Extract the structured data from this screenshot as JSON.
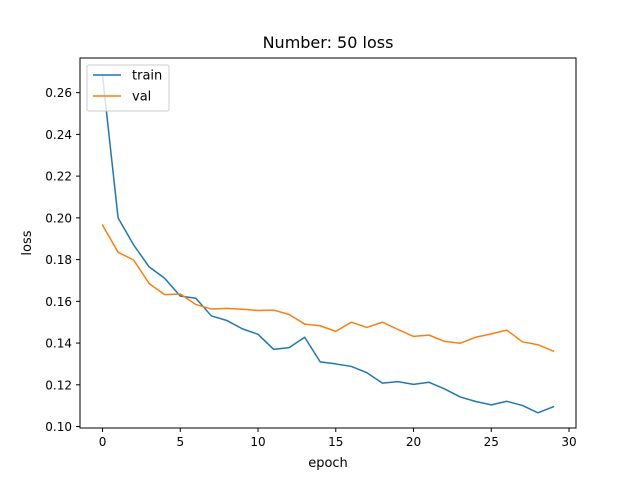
{
  "chart_data": {
    "type": "line",
    "title": "Number: 50 loss",
    "xlabel": "epoch",
    "ylabel": "loss",
    "xlim": [
      -1.45,
      30.45
    ],
    "ylim": [
      0.0993,
      0.2766
    ],
    "xticks": [
      0,
      5,
      10,
      15,
      20,
      25,
      30
    ],
    "xtick_labels": [
      "0",
      "5",
      "10",
      "15",
      "20",
      "25",
      "30"
    ],
    "yticks": [
      0.1,
      0.12,
      0.14,
      0.16,
      0.18,
      0.2,
      0.22,
      0.24,
      0.26
    ],
    "ytick_labels": [
      "0.10",
      "0.12",
      "0.14",
      "0.16",
      "0.18",
      "0.20",
      "0.22",
      "0.24",
      "0.26"
    ],
    "grid": false,
    "legend_position": "top-left",
    "x": [
      0,
      1,
      2,
      3,
      4,
      5,
      6,
      7,
      8,
      9,
      10,
      11,
      12,
      13,
      14,
      15,
      16,
      17,
      18,
      19,
      20,
      21,
      22,
      23,
      24,
      25,
      26,
      27,
      28,
      29
    ],
    "series": [
      {
        "name": "train",
        "color": "#1f77b4",
        "values": [
          0.268,
          0.2,
          0.187,
          0.1765,
          0.171,
          0.1625,
          0.1615,
          0.153,
          0.1508,
          0.1468,
          0.1442,
          0.137,
          0.1378,
          0.1428,
          0.131,
          0.13,
          0.1288,
          0.1258,
          0.1208,
          0.1215,
          0.1202,
          0.1212,
          0.118,
          0.1142,
          0.112,
          0.1104,
          0.1121,
          0.1101,
          0.1066,
          0.1095
        ]
      },
      {
        "name": "val",
        "color": "#ff7f0e",
        "values": [
          0.1965,
          0.1835,
          0.1798,
          0.1685,
          0.1632,
          0.1635,
          0.1585,
          0.1563,
          0.1566,
          0.1562,
          0.1556,
          0.1558,
          0.1537,
          0.1491,
          0.1483,
          0.1456,
          0.15,
          0.1475,
          0.15,
          0.1465,
          0.1432,
          0.1438,
          0.1408,
          0.1399,
          0.1428,
          0.1444,
          0.1462,
          0.1406,
          0.1392,
          0.1361
        ]
      }
    ]
  }
}
